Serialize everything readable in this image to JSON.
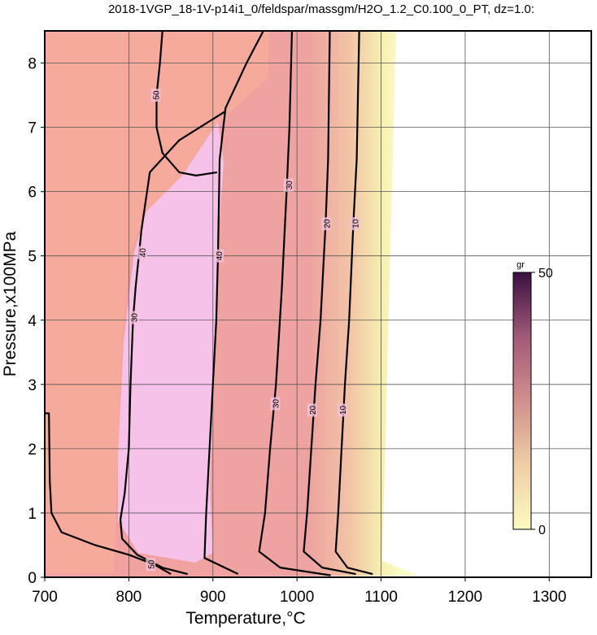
{
  "chart_data": {
    "type": "contour",
    "title": "2018-1VGP_18-1V-p14i1_0/feldspar/massgm/H2O_1.2_C0.100_0_PT, dz=1.0:",
    "xlabel": "Temperature,°C",
    "ylabel": "Pressure,x100MPa",
    "xlim": [
      700,
      1350
    ],
    "ylim": [
      0,
      8.5
    ],
    "xticks": [
      700,
      800,
      900,
      1000,
      1100,
      1200,
      1300
    ],
    "yticks": [
      0,
      1,
      2,
      3,
      4,
      5,
      6,
      7,
      8
    ],
    "grid": true,
    "colorbar": {
      "label": "gr",
      "lim": [
        0,
        50
      ],
      "ticks": [
        0,
        50
      ]
    },
    "contours": [
      {
        "level": 10,
        "label_at": [
          1069,
          5.5
        ],
        "x": [
          1074,
          1071,
          1067,
          1062,
          1057,
          1053,
          1049,
          1046,
          1060,
          1090
        ],
        "y": [
          8.5,
          6.5,
          5.5,
          4,
          3,
          2,
          1,
          0.4,
          0.15,
          0.05
        ]
      },
      {
        "level": 10,
        "label_at": [
          1054,
          2.6
        ],
        "x": [],
        "y": []
      },
      {
        "level": 20,
        "label_at": [
          1035,
          5.5
        ],
        "x": [
          1039,
          1037,
          1034,
          1028,
          1022,
          1017,
          1012,
          1008,
          1030,
          1070
        ],
        "y": [
          8.5,
          6.5,
          5.5,
          4,
          3,
          2,
          1,
          0.4,
          0.15,
          0.05
        ]
      },
      {
        "level": 20,
        "label_at": [
          1018,
          2.6
        ],
        "x": [],
        "y": []
      },
      {
        "level": 30,
        "label_at": [
          990,
          6.1
        ],
        "x": [
          994,
          991,
          988,
          982,
          975,
          968,
          962,
          955,
          980,
          1040
        ],
        "y": [
          8.5,
          7,
          6.1,
          4.5,
          3,
          2,
          1,
          0.4,
          0.15,
          0.03
        ]
      },
      {
        "level": 30,
        "label_at": [
          974,
          2.7
        ],
        "x": [],
        "y": []
      },
      {
        "level": 40,
        "label_at": [
          907,
          5
        ],
        "x": [
          960,
          940,
          915,
          908,
          906,
          904,
          900,
          896,
          892,
          890,
          930
        ],
        "y": [
          8.5,
          8,
          7.3,
          6.5,
          5,
          4,
          3,
          2,
          1,
          0.3,
          0.05
        ]
      },
      {
        "level": 40,
        "label_at": [
          816,
          5.05
        ],
        "x": [
          915,
          860,
          825,
          815,
          808,
          805,
          802,
          800
        ],
        "y": [
          7.25,
          6.8,
          6.3,
          5.4,
          4.5,
          4.0,
          3,
          2
        ]
      },
      {
        "level": 30,
        "label_at": [
          806,
          4.04
        ],
        "x": [
          800,
          795,
          790,
          792,
          810,
          840,
          870
        ],
        "y": [
          2,
          1.3,
          0.9,
          0.6,
          0.35,
          0.15,
          0.05
        ]
      },
      {
        "level": 50,
        "label_at": [
          826,
          0.2
        ],
        "x": [
          700,
          705,
          706,
          708,
          720,
          760,
          800,
          830,
          850
        ],
        "y": [
          2.55,
          2.55,
          1.5,
          1.0,
          0.7,
          0.5,
          0.35,
          0.2,
          0.05
        ]
      },
      {
        "level": 50,
        "label_at": [
          832,
          7.5
        ],
        "x": [
          840,
          837,
          833,
          833,
          840,
          860,
          880,
          905
        ],
        "y": [
          8.5,
          8.0,
          7.5,
          7.0,
          6.6,
          6.3,
          6.25,
          6.3
        ]
      }
    ]
  }
}
